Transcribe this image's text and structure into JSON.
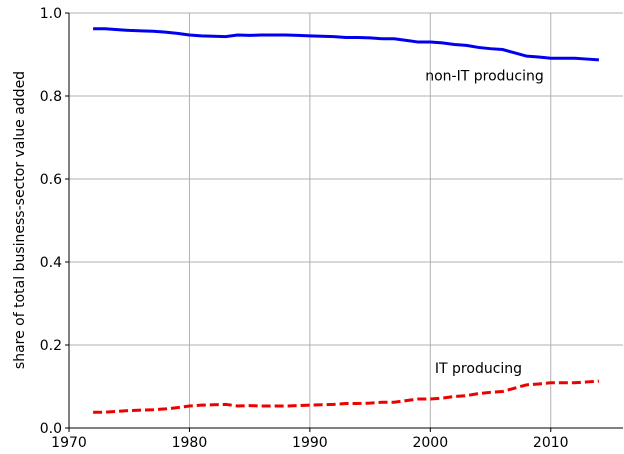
{
  "chart_data": {
    "type": "line",
    "y_label": "share of total business-sector value added",
    "x": [
      1972,
      1973,
      1974,
      1975,
      1976,
      1977,
      1978,
      1979,
      1980,
      1981,
      1982,
      1983,
      1984,
      1985,
      1986,
      1987,
      1988,
      1989,
      1990,
      1991,
      1992,
      1993,
      1994,
      1995,
      1996,
      1997,
      1998,
      1999,
      2000,
      2001,
      2002,
      2003,
      2004,
      2005,
      2006,
      2007,
      2008,
      2009,
      2010,
      2011,
      2012,
      2013,
      2014
    ],
    "series": [
      {
        "name": "non-IT producing",
        "color": "#0000ee",
        "dash": false,
        "values": [
          0.962,
          0.962,
          0.96,
          0.958,
          0.957,
          0.956,
          0.954,
          0.951,
          0.947,
          0.945,
          0.944,
          0.943,
          0.947,
          0.946,
          0.947,
          0.947,
          0.947,
          0.946,
          0.945,
          0.944,
          0.943,
          0.941,
          0.941,
          0.94,
          0.938,
          0.938,
          0.934,
          0.93,
          0.93,
          0.928,
          0.924,
          0.922,
          0.917,
          0.914,
          0.912,
          0.904,
          0.896,
          0.894,
          0.891,
          0.891,
          0.891,
          0.889,
          0.887
        ]
      },
      {
        "name": "IT producing",
        "color": "#ee0000",
        "dash": true,
        "values": [
          0.038,
          0.038,
          0.04,
          0.042,
          0.043,
          0.044,
          0.046,
          0.049,
          0.053,
          0.055,
          0.056,
          0.057,
          0.053,
          0.054,
          0.053,
          0.053,
          0.053,
          0.054,
          0.055,
          0.056,
          0.057,
          0.059,
          0.059,
          0.06,
          0.062,
          0.062,
          0.066,
          0.07,
          0.07,
          0.072,
          0.076,
          0.078,
          0.083,
          0.086,
          0.088,
          0.096,
          0.104,
          0.106,
          0.109,
          0.109,
          0.109,
          0.111,
          0.113
        ]
      }
    ],
    "xlim": [
      1970,
      2016
    ],
    "ylim": [
      0,
      1
    ],
    "xticks": [
      1970,
      1980,
      1990,
      2000,
      2010
    ],
    "yticks": [
      {
        "value": 0,
        "label": "0.0"
      },
      {
        "value": 0.2,
        "label": "0.2"
      },
      {
        "value": 0.4,
        "label": "0.4"
      },
      {
        "value": 0.6,
        "label": "0.6"
      },
      {
        "value": 0.8,
        "label": "0.8"
      },
      {
        "value": 1,
        "label": "1.0"
      }
    ],
    "grid": true
  }
}
